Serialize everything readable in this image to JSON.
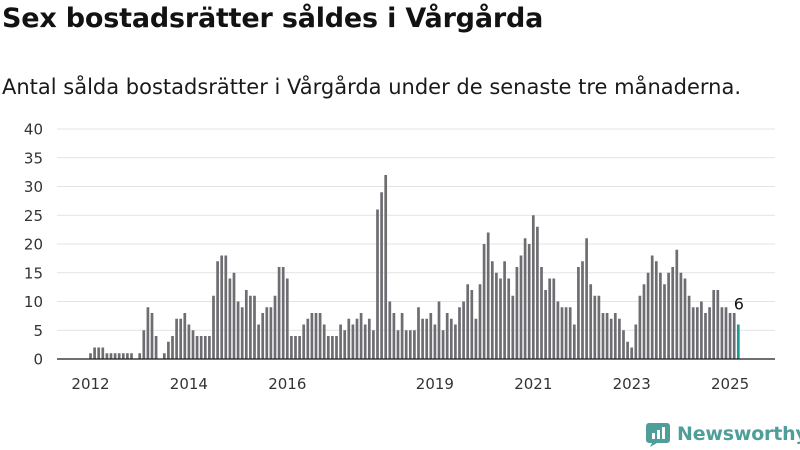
{
  "header": {
    "title": "Sex bostadsrätter såldes i Vårgårda",
    "subtitle": "Antal sålda bostadsrätter i Vårgårda under de senaste tre månaderna."
  },
  "logo": {
    "text": "Newsworthy",
    "icon": "newsworthy-logo-icon",
    "color": "#4f9e99"
  },
  "colors": {
    "bar": "#6e6d72",
    "highlight": "#1a9c95",
    "grid": "#e3e3e3",
    "axis": "#1a1a1a",
    "tick_text": "#333333"
  },
  "chart_data": {
    "type": "bar",
    "title": "Sex bostadsrätter såldes i Vårgårda",
    "subtitle": "Antal sålda bostadsrätter i Vårgårda under de senaste tre månaderna.",
    "xlabel": "",
    "ylabel": "",
    "ylim": [
      0,
      40
    ],
    "yticks": [
      0,
      5,
      10,
      15,
      20,
      25,
      30,
      35,
      40
    ],
    "xtick_labels": [
      "2012",
      "2014",
      "2016",
      "2019",
      "2021",
      "2023",
      "2025"
    ],
    "grid": true,
    "legend": "none",
    "period": "rolling three months, monthly",
    "x_start": "2012-01",
    "x_end": "2025-04",
    "values": [
      1,
      2,
      2,
      2,
      1,
      1,
      1,
      1,
      1,
      1,
      1,
      0,
      1,
      5,
      9,
      8,
      4,
      0,
      1,
      3,
      4,
      7,
      7,
      8,
      6,
      5,
      4,
      4,
      4,
      4,
      11,
      17,
      18,
      18,
      14,
      15,
      10,
      9,
      12,
      11,
      11,
      6,
      8,
      9,
      9,
      11,
      16,
      16,
      14,
      4,
      4,
      4,
      6,
      7,
      8,
      8,
      8,
      6,
      4,
      4,
      4,
      6,
      5,
      7,
      6,
      7,
      8,
      6,
      7,
      5,
      26,
      29,
      32,
      10,
      8,
      5,
      8,
      5,
      5,
      5,
      9,
      7,
      7,
      8,
      6,
      10,
      5,
      8,
      7,
      6,
      9,
      10,
      13,
      12,
      7,
      13,
      20,
      22,
      17,
      15,
      14,
      17,
      14,
      11,
      16,
      18,
      21,
      20,
      25,
      23,
      16,
      12,
      14,
      14,
      10,
      9,
      9,
      9,
      6,
      16,
      17,
      21,
      13,
      11,
      11,
      8,
      8,
      7,
      8,
      7,
      5,
      3,
      2,
      6,
      11,
      13,
      15,
      18,
      17,
      15,
      13,
      15,
      16,
      19,
      15,
      14,
      11,
      9,
      9,
      10,
      8,
      9,
      12,
      12,
      9,
      9,
      8,
      8,
      6
    ],
    "highlight_last": true,
    "last_label": "6"
  }
}
